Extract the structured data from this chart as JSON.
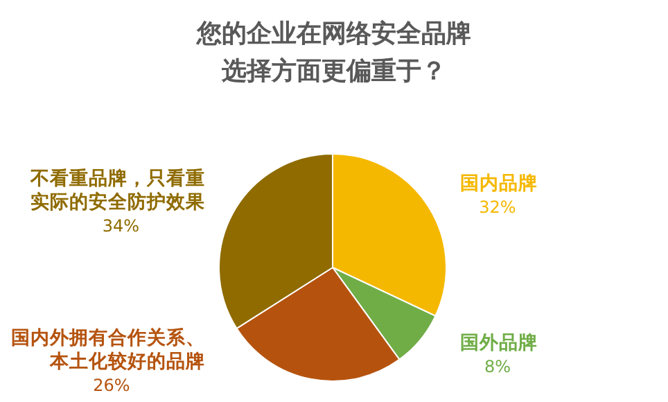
{
  "chart_data": {
    "type": "pie",
    "title": "您的企业在网络安全品牌选择方面更偏重于？",
    "categories": [
      "国内品牌",
      "国外品牌",
      "国内外拥有合作关系、本土化较好的品牌",
      "不看重品牌，只看重实际的安全防护效果"
    ],
    "values": [
      32,
      8,
      26,
      34
    ],
    "value_labels": [
      "32%",
      "8%",
      "26%",
      "34%"
    ],
    "colors": [
      "#f5b800",
      "#70ad47",
      "#b5530e",
      "#8f6b00"
    ]
  }
}
